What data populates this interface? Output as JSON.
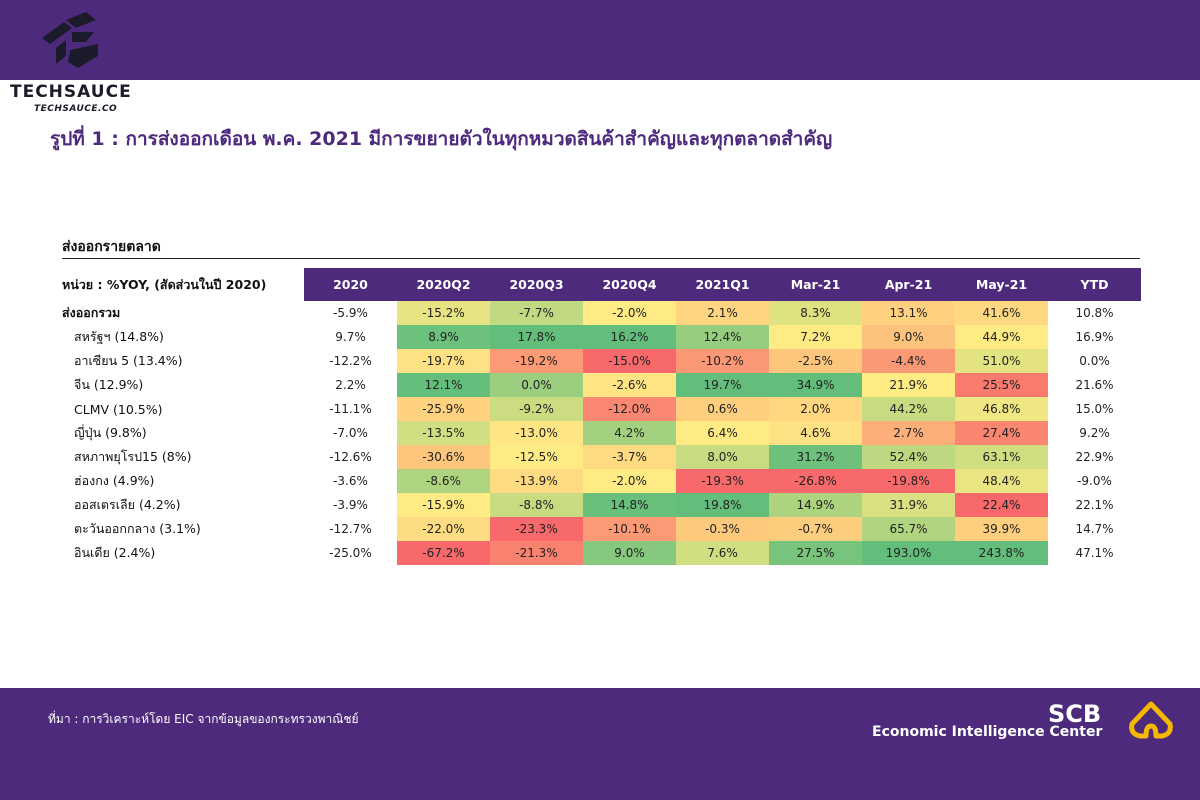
{
  "header": {
    "brand": "TECHSAUCE",
    "brand_sub": "TECHSAUCE.CO",
    "title": "รูปที่ 1 : การส่งออกเดือน พ.ค. 2021 มีการขยายตัวในทุกหมวดสินค้าสำคัญและทุกตลาดสำคัญ"
  },
  "section": {
    "title": "ส่งออกรายตลาด",
    "unit_label": "หน่วย : %YOY, (สัดส่วนในปี 2020)"
  },
  "footer": {
    "source": "ที่มา : การวิเคราะห์โดย EIC จากข้อมูลของกระทรวงพาณิชย์",
    "scb": "SCB",
    "eic": "Economic Intelligence Center"
  },
  "colors": {
    "brand_purple": "#4e2a7d",
    "heat_low": "#f8696b",
    "heat_mid": "#ffeb84",
    "heat_high": "#63be7b"
  },
  "chart_data": {
    "type": "heatmap",
    "title": "ส่งออกรายตลาด",
    "unit": "%YOY",
    "columns": [
      "2020",
      "2020Q2",
      "2020Q3",
      "2020Q4",
      "2021Q1",
      "Mar-21",
      "Apr-21",
      "May-21",
      "YTD"
    ],
    "heat_columns": [
      "2020Q2",
      "2020Q3",
      "2020Q4",
      "2021Q1",
      "Mar-21",
      "Apr-21",
      "May-21"
    ],
    "rows": [
      {
        "label": "ส่งออกรวม",
        "bold": true,
        "indent": false,
        "values": [
          "-5.9%",
          "-15.2%",
          "-7.7%",
          "-2.0%",
          "2.1%",
          "8.3%",
          "13.1%",
          "41.6%",
          "10.8%"
        ]
      },
      {
        "label": "สหรัฐฯ (14.8%)",
        "bold": false,
        "indent": true,
        "values": [
          "9.7%",
          "8.9%",
          "17.8%",
          "16.2%",
          "12.4%",
          "7.2%",
          "9.0%",
          "44.9%",
          "16.9%"
        ]
      },
      {
        "label": "อาเซียน 5 (13.4%)",
        "bold": false,
        "indent": true,
        "values": [
          "-12.2%",
          "-19.7%",
          "-19.2%",
          "-15.0%",
          "-10.2%",
          "-2.5%",
          "-4.4%",
          "51.0%",
          "0.0%"
        ]
      },
      {
        "label": "จีน (12.9%)",
        "bold": false,
        "indent": true,
        "values": [
          "2.2%",
          "12.1%",
          "0.0%",
          "-2.6%",
          "19.7%",
          "34.9%",
          "21.9%",
          "25.5%",
          "21.6%"
        ]
      },
      {
        "label": "CLMV (10.5%)",
        "bold": false,
        "indent": true,
        "values": [
          "-11.1%",
          "-25.9%",
          "-9.2%",
          "-12.0%",
          "0.6%",
          "2.0%",
          "44.2%",
          "46.8%",
          "15.0%"
        ]
      },
      {
        "label": "ญี่ปุ่น (9.8%)",
        "bold": false,
        "indent": true,
        "values": [
          "-7.0%",
          "-13.5%",
          "-13.0%",
          "4.2%",
          "6.4%",
          "4.6%",
          "2.7%",
          "27.4%",
          "9.2%"
        ]
      },
      {
        "label": "สหภาพยุโรป15 (8%)",
        "bold": false,
        "indent": true,
        "values": [
          "-12.6%",
          "-30.6%",
          "-12.5%",
          "-3.7%",
          "8.0%",
          "31.2%",
          "52.4%",
          "63.1%",
          "22.9%"
        ]
      },
      {
        "label": "ฮ่องกง (4.9%)",
        "bold": false,
        "indent": true,
        "values": [
          "-3.6%",
          "-8.6%",
          "-13.9%",
          "-2.0%",
          "-19.3%",
          "-26.8%",
          "-19.8%",
          "48.4%",
          "-9.0%"
        ]
      },
      {
        "label": "ออสเตรเลีย (4.2%)",
        "bold": false,
        "indent": true,
        "values": [
          "-3.9%",
          "-15.9%",
          "-8.8%",
          "14.8%",
          "19.8%",
          "14.9%",
          "31.9%",
          "22.4%",
          "22.1%"
        ]
      },
      {
        "label": "ตะวันออกกลาง (3.1%)",
        "bold": false,
        "indent": true,
        "values": [
          "-12.7%",
          "-22.0%",
          "-23.3%",
          "-10.1%",
          "-0.3%",
          "-0.7%",
          "65.7%",
          "39.9%",
          "14.7%"
        ]
      },
      {
        "label": "อินเดีย (2.4%)",
        "bold": false,
        "indent": true,
        "values": [
          "-25.0%",
          "-67.2%",
          "-21.3%",
          "9.0%",
          "7.6%",
          "27.5%",
          "193.0%",
          "243.8%",
          "47.1%"
        ]
      }
    ]
  }
}
